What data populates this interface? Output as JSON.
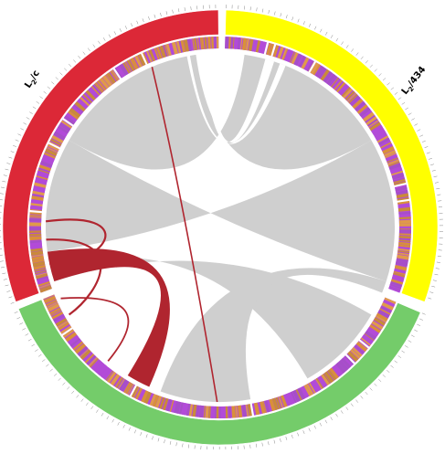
{
  "figure": {
    "type": "circos-synteny-plot",
    "genomes": [
      {
        "id": "L2c",
        "label_main": "L",
        "label_sub": "2",
        "label_rest": "/c",
        "color": "#dc2837"
      },
      {
        "id": "L2_434",
        "label_main": "L",
        "label_sub": "2",
        "label_rest": "/434",
        "color": "#ffff00"
      },
      {
        "id": "third",
        "color": "#74cc6a"
      }
    ],
    "gene_track_colors": [
      "#b24bd8",
      "#d9903a",
      "#c98a3b",
      "#a64fc8",
      "#e09a4a"
    ],
    "link_colors": {
      "collinear": "#cfcfcf",
      "inverted": "#b0252f"
    }
  }
}
